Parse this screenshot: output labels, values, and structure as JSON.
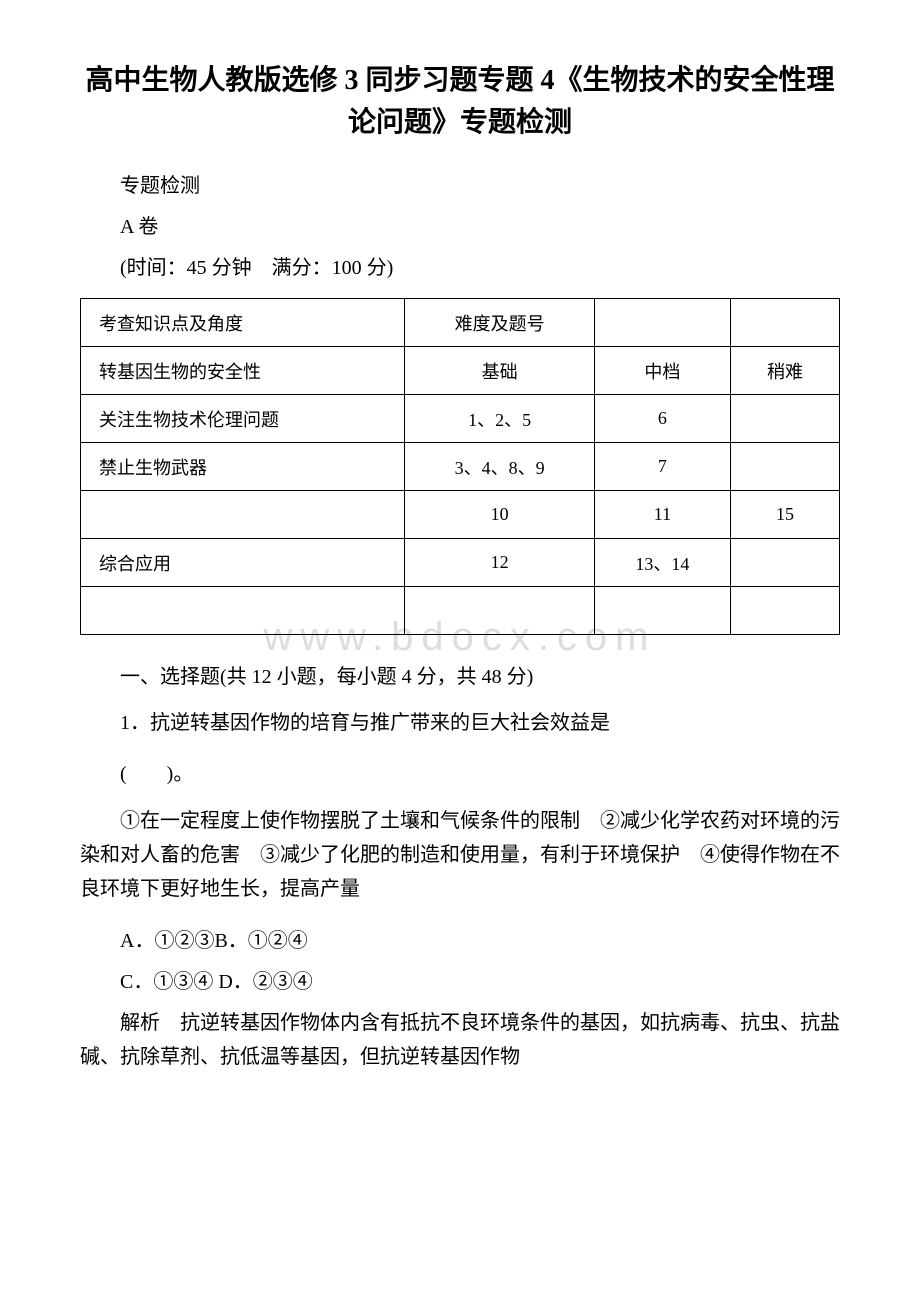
{
  "title": "高中生物人教版选修 3 同步习题专题 4《生物技术的安全性理论问题》专题检测",
  "subtitle": "专题检测",
  "paper_label": "A 卷",
  "time_score": "(时间：45 分钟　满分：100 分)",
  "watermark": "www.bdocx.com",
  "table": {
    "rows": [
      [
        "考查知识点及角度",
        "难度及题号",
        "",
        ""
      ],
      [
        "转基因生物的安全性",
        "基础",
        "中档",
        "稍难"
      ],
      [
        "关注生物技术伦理问题",
        "1、2、5",
        "6",
        ""
      ],
      [
        "禁止生物武器",
        "3、4、8、9",
        "7",
        ""
      ],
      [
        "",
        "10",
        "11",
        "15"
      ],
      [
        "综合应用",
        "12",
        "13、14",
        ""
      ],
      [
        "",
        "",
        "",
        ""
      ]
    ]
  },
  "section_header": "一、选择题(共 12 小题，每小题 4 分，共 48 分)",
  "question1_intro": "1．抗逆转基因作物的培育与推广带来的巨大社会效益是",
  "question1_paren": "(　　)。",
  "question1_text": "①在一定程度上使作物摆脱了土壤和气候条件的限制　②减少化学农药对环境的污染和对人畜的危害　③减少了化肥的制造和使用量，有利于环境保护　④使得作物在不良环境下更好地生长，提高产量",
  "option_a": "A．①②③",
  "option_b": "B．①②④",
  "option_c": "C．①③④",
  "option_d": "D．②③④",
  "analysis": "解析　抗逆转基因作物体内含有抵抗不良环境条件的基因，如抗病毒、抗虫、抗盐碱、抗除草剂、抗低温等基因，但抗逆转基因作物",
  "colors": {
    "text": "#000000",
    "background": "#ffffff",
    "border": "#000000",
    "watermark": "#dddddd"
  }
}
